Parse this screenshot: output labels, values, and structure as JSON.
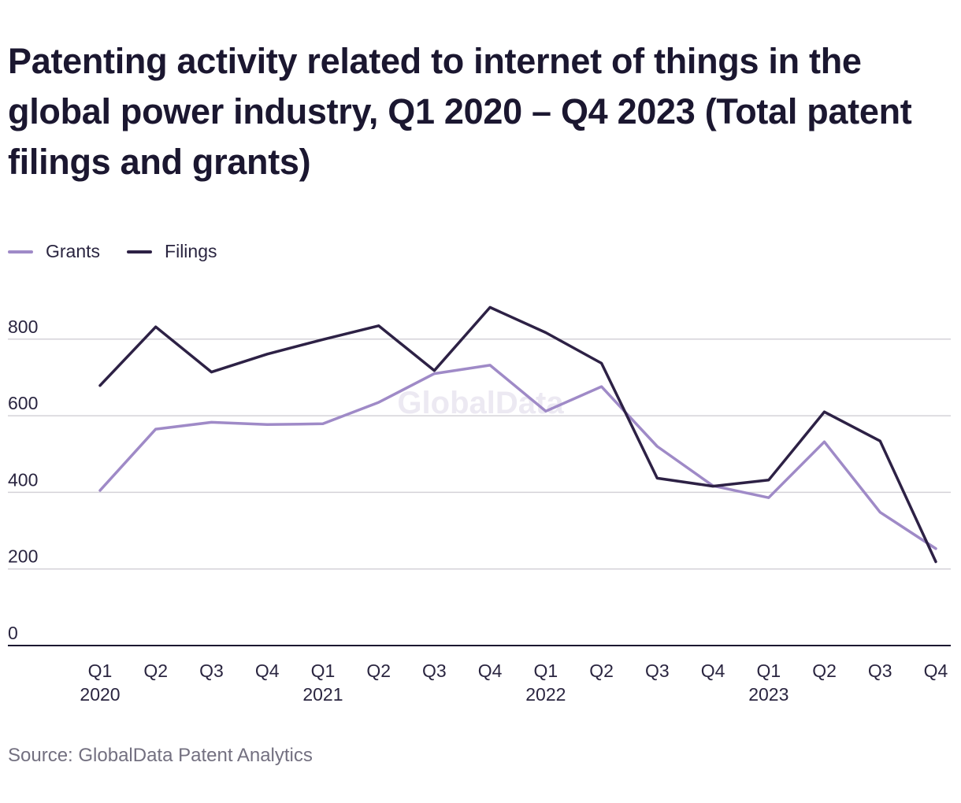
{
  "chart_data": {
    "type": "line",
    "title": "Patenting activity related to internet of things in the global power industry, Q1 2020 – Q4 2023 (Total patent filings and grants)",
    "source": "Source: GlobalData Patent Analytics",
    "watermark": "GlobalData",
    "categories": [
      "Q1 2020",
      "Q2 2020",
      "Q3 2020",
      "Q4 2020",
      "Q1 2021",
      "Q2 2021",
      "Q3 2021",
      "Q4 2021",
      "Q1 2022",
      "Q2 2022",
      "Q3 2022",
      "Q4 2022",
      "Q1 2023",
      "Q2 2023",
      "Q3 2023",
      "Q4 2023"
    ],
    "x_tick_labels": [
      {
        "quarter": "Q1",
        "year": "2020"
      },
      {
        "quarter": "Q2",
        "year": ""
      },
      {
        "quarter": "Q3",
        "year": ""
      },
      {
        "quarter": "Q4",
        "year": ""
      },
      {
        "quarter": "Q1",
        "year": "2021"
      },
      {
        "quarter": "Q2",
        "year": ""
      },
      {
        "quarter": "Q3",
        "year": ""
      },
      {
        "quarter": "Q4",
        "year": ""
      },
      {
        "quarter": "Q1",
        "year": "2022"
      },
      {
        "quarter": "Q2",
        "year": ""
      },
      {
        "quarter": "Q3",
        "year": ""
      },
      {
        "quarter": "Q4",
        "year": ""
      },
      {
        "quarter": "Q1",
        "year": "2023"
      },
      {
        "quarter": "Q2",
        "year": ""
      },
      {
        "quarter": "Q3",
        "year": ""
      },
      {
        "quarter": "Q4",
        "year": ""
      }
    ],
    "series": [
      {
        "name": "Grants",
        "color": "#9f8ac7",
        "values": [
          405,
          565,
          583,
          577,
          579,
          635,
          710,
          732,
          612,
          676,
          520,
          417,
          386,
          532,
          348,
          253
        ]
      },
      {
        "name": "Filings",
        "color": "#2d2145",
        "values": [
          679,
          832,
          714,
          761,
          799,
          835,
          718,
          883,
          817,
          737,
          437,
          416,
          432,
          610,
          534,
          219
        ]
      }
    ],
    "yticks": [
      0,
      200,
      400,
      600,
      800
    ],
    "ylim": [
      0,
      900
    ],
    "grid": true,
    "legend_position": "top-left"
  }
}
